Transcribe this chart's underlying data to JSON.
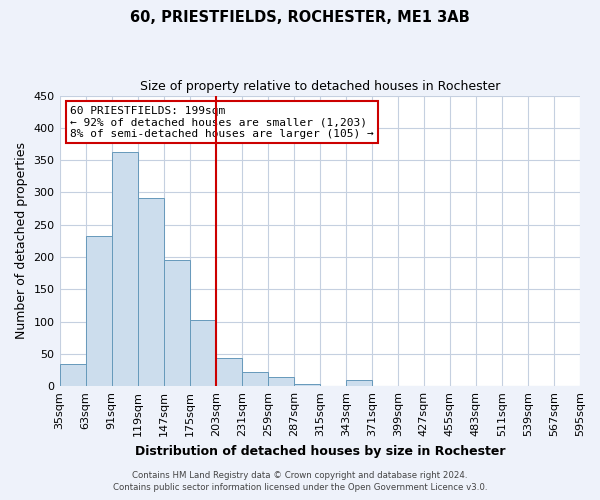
{
  "title": "60, PRIESTFIELDS, ROCHESTER, ME1 3AB",
  "subtitle": "Size of property relative to detached houses in Rochester",
  "xlabel": "Distribution of detached houses by size in Rochester",
  "ylabel": "Number of detached properties",
  "bar_color": "#ccdded",
  "bar_edge_color": "#6699bb",
  "bins_left": [
    35,
    63,
    91,
    119,
    147,
    175,
    203,
    231,
    259,
    287,
    315,
    343,
    371,
    399,
    427,
    455,
    483,
    511,
    539,
    567
  ],
  "bin_width": 28,
  "bin_labels": [
    "35sqm",
    "63sqm",
    "91sqm",
    "119sqm",
    "147sqm",
    "175sqm",
    "203sqm",
    "231sqm",
    "259sqm",
    "287sqm",
    "315sqm",
    "343sqm",
    "371sqm",
    "399sqm",
    "427sqm",
    "455sqm",
    "483sqm",
    "511sqm",
    "539sqm",
    "567sqm",
    "595sqm"
  ],
  "counts": [
    35,
    233,
    363,
    292,
    196,
    103,
    44,
    22,
    14,
    4,
    0,
    9,
    0,
    0,
    0,
    0,
    0,
    0,
    0,
    1
  ],
  "vline_x": 203,
  "vline_color": "#cc0000",
  "ylim": [
    0,
    450
  ],
  "yticks": [
    0,
    50,
    100,
    150,
    200,
    250,
    300,
    350,
    400,
    450
  ],
  "annotation_line1": "60 PRIESTFIELDS: 199sqm",
  "annotation_line2": "← 92% of detached houses are smaller (1,203)",
  "annotation_line3": "8% of semi-detached houses are larger (105) →",
  "footnote1": "Contains HM Land Registry data © Crown copyright and database right 2024.",
  "footnote2": "Contains public sector information licensed under the Open Government Licence v3.0.",
  "background_color": "#eef2fa",
  "plot_bg_color": "#ffffff",
  "grid_color": "#c5d0e0"
}
